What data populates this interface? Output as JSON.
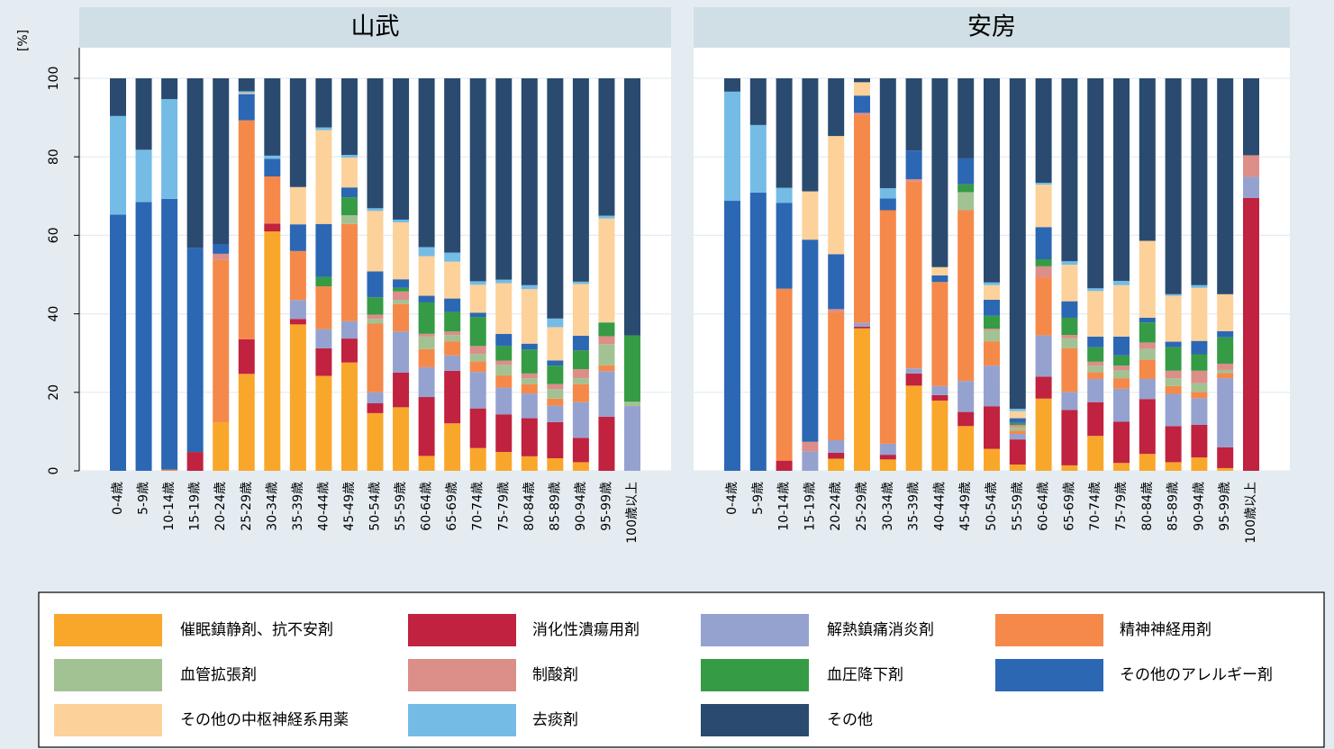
{
  "chart_data": {
    "type": "bar",
    "stacked": true,
    "y_label": "[%]",
    "categories": [
      "0-4歳",
      "5-9歳",
      "10-14歳",
      "15-19歳",
      "20-24歳",
      "25-29歳",
      "30-34歳",
      "35-39歳",
      "40-44歳",
      "45-49歳",
      "50-54歳",
      "55-59歳",
      "60-64歳",
      "65-69歳",
      "70-74歳",
      "75-79歳",
      "80-84歳",
      "85-89歳",
      "90-94歳",
      "95-99歳",
      "100歳以上"
    ],
    "ylim": [
      0,
      100
    ],
    "yticks": [
      0,
      20,
      40,
      60,
      80,
      100
    ],
    "grid": true,
    "series": [
      {
        "name": "催眠鎮静剤、抗不安剤",
        "color": "#f9a72b"
      },
      {
        "name": "消化性潰瘍用剤",
        "color": "#c0223f"
      },
      {
        "name": "解熱鎮痛消炎剤",
        "color": "#95a2d0"
      },
      {
        "name": "精神神経用剤",
        "color": "#f5894a"
      },
      {
        "name": "血管拡張剤",
        "color": "#a3c293"
      },
      {
        "name": "制酸剤",
        "color": "#dc8e88"
      },
      {
        "name": "血圧降下剤",
        "color": "#359b45"
      },
      {
        "name": "その他のアレルギー剤",
        "color": "#2c67b4"
      },
      {
        "name": "その他の中枢神経系用薬",
        "color": "#fdd19a"
      },
      {
        "name": "去痰剤",
        "color": "#74bce6"
      },
      {
        "name": "その他",
        "color": "#2a4b6f"
      }
    ],
    "panels": [
      {
        "title": "山武",
        "series": [
          {
            "values": [
              0,
              0,
              0,
              0,
              12.3,
              24.7,
              61,
              37.3,
              24.2,
              27.6,
              14.7,
              16.2,
              3.8,
              12.1,
              5.8,
              4.8,
              3.7,
              3.2,
              2.2,
              0,
              0
            ]
          },
          {
            "values": [
              0,
              0,
              0,
              4.8,
              0,
              8.8,
              2,
              1.4,
              7,
              6.1,
              2.5,
              8.8,
              15,
              13.4,
              10.1,
              9.6,
              9.7,
              9.2,
              6.2,
              13.8,
              0
            ]
          },
          {
            "values": [
              0,
              0,
              0,
              0,
              0,
              0,
              0,
              4.8,
              4.9,
              4.4,
              2.8,
              10.5,
              7.6,
              3.9,
              9.3,
              6.8,
              6.3,
              4.2,
              9.1,
              11.6,
              16.5
            ]
          },
          {
            "values": [
              0,
              0,
              0.3,
              0,
              41.4,
              55.8,
              12,
              12.5,
              10.9,
              24.8,
              17.5,
              7,
              4.6,
              3.6,
              2.7,
              3.1,
              2.4,
              1.8,
              4.6,
              1.5,
              0
            ]
          },
          {
            "values": [
              0,
              0,
              0,
              0,
              0,
              0,
              0,
              0,
              0,
              2.2,
              1.2,
              1,
              3.2,
              1.6,
              1.9,
              2.7,
              1.5,
              2.4,
              1.5,
              5.4,
              1.1
            ]
          },
          {
            "values": [
              0,
              0,
              0,
              0,
              1.6,
              0,
              0,
              0,
              0,
              0,
              1.1,
              2.2,
              0.7,
              0.9,
              2,
              1.1,
              1.2,
              1.3,
              2.3,
              2,
              0
            ]
          },
          {
            "values": [
              0,
              0,
              0,
              0,
              0,
              0,
              0,
              0,
              2.4,
              4.6,
              4.4,
              0.9,
              8,
              5,
              7.4,
              3.7,
              6.1,
              4.7,
              4.8,
              3.5,
              16.9
            ]
          },
          {
            "values": [
              65.3,
              68.5,
              69,
              52,
              2.5,
              6.7,
              4.5,
              6.8,
              13.5,
              2.5,
              6.6,
              2.2,
              1.7,
              3.4,
              1.1,
              3.1,
              1.5,
              1.3,
              3.7,
              0,
              0
            ]
          },
          {
            "values": [
              0,
              0,
              0,
              0,
              0,
              0.3,
              0,
              9.5,
              23.9,
              7.6,
              15.4,
              14.5,
              10.1,
              9.4,
              7.1,
              12.9,
              13.9,
              8.5,
              13.2,
              26.5,
              0
            ]
          },
          {
            "values": [
              25.1,
              13.3,
              25.4,
              0,
              0,
              0.4,
              0.8,
              0,
              0.7,
              0.7,
              0.7,
              0.7,
              2.3,
              2.3,
              0.9,
              0.9,
              1,
              2.2,
              0.6,
              0.7,
              0
            ]
          },
          {
            "values": [
              9.6,
              18.2,
              5.3,
              43.2,
              42.2,
              3.3,
              19.7,
              27.7,
              12.5,
              19.5,
              33.1,
              36,
              43,
              44.4,
              51.7,
              51.3,
              52.7,
              61.2,
              51.8,
              35,
              65.5
            ]
          }
        ]
      },
      {
        "title": "安房",
        "series": [
          {
            "values": [
              0,
              0,
              0,
              0,
              3.1,
              36.3,
              2.9,
              21.7,
              17.9,
              11.4,
              5.6,
              1.6,
              18.4,
              1.4,
              8.9,
              2,
              4.3,
              2.2,
              3.4,
              0.7,
              0
            ]
          },
          {
            "values": [
              0,
              0,
              2.6,
              0,
              1.5,
              0.4,
              1.2,
              3.1,
              1.4,
              3.6,
              10.8,
              6.4,
              5.6,
              14.1,
              8.6,
              10.5,
              14,
              9.2,
              8.3,
              5.3,
              69.5
            ]
          },
          {
            "values": [
              0,
              0,
              0,
              4.9,
              3.2,
              1,
              2.8,
              1.3,
              2.3,
              7.9,
              10.4,
              1.4,
              10.5,
              4.6,
              5.9,
              8.4,
              5.1,
              8.2,
              6.8,
              17.6,
              5.4
            ]
          },
          {
            "values": [
              0,
              0,
              43.8,
              0,
              32.7,
              52.9,
              59.5,
              47.6,
              26.5,
              43.5,
              6.2,
              0.8,
              14.8,
              11.1,
              1.7,
              2.7,
              4.9,
              2,
              1.6,
              1.3,
              0
            ]
          },
          {
            "values": [
              0,
              0,
              0,
              0,
              0,
              0,
              0,
              0,
              0,
              4.6,
              2.8,
              0.9,
              0,
              2.6,
              1.7,
              2,
              2.8,
              2,
              2.2,
              0.8,
              0
            ]
          },
          {
            "values": [
              0,
              0,
              0,
              2.5,
              0.7,
              0.6,
              0,
              0.6,
              0,
              0,
              0.4,
              0.6,
              2.8,
              0.8,
              1,
              1.2,
              1.6,
              1.9,
              3.2,
              1.6,
              5.5
            ]
          },
          {
            "values": [
              0,
              0,
              0,
              0,
              0,
              0,
              0,
              0,
              0,
              2,
              3.3,
              0.5,
              1.8,
              4.4,
              3.7,
              2.6,
              5.1,
              6,
              4.2,
              6.7,
              0
            ]
          },
          {
            "values": [
              68.8,
              70.9,
              21.9,
              51.5,
              14,
              4.4,
              3,
              7.3,
              1.7,
              6.6,
              4.1,
              1.2,
              8.2,
              4.2,
              2.7,
              4.8,
              1.2,
              1.4,
              3.4,
              1.6,
              0
            ]
          },
          {
            "values": [
              0,
              0,
              0,
              12.3,
              30.1,
              3.4,
              0,
              0,
              2.1,
              0,
              3.7,
              1.8,
              10.8,
              9.3,
              11.6,
              13.1,
              19.6,
              11.7,
              13.5,
              9.4,
              0
            ]
          },
          {
            "values": [
              27.8,
              17.2,
              3.8,
              0,
              0,
              0,
              2.6,
              0,
              0,
              0,
              0.7,
              0.6,
              0.5,
              0.9,
              0.7,
              1.1,
              0,
              0.4,
              0.7,
              0,
              0
            ]
          },
          {
            "values": [
              3.4,
              11.9,
              27.9,
              28.8,
              14.7,
              1,
              28,
              18.4,
              48.1,
              20.4,
              52,
              84.2,
              26.6,
              46.6,
              53.5,
              51.6,
              41.4,
              55,
              52.7,
              55,
              19.6
            ]
          }
        ]
      }
    ]
  }
}
